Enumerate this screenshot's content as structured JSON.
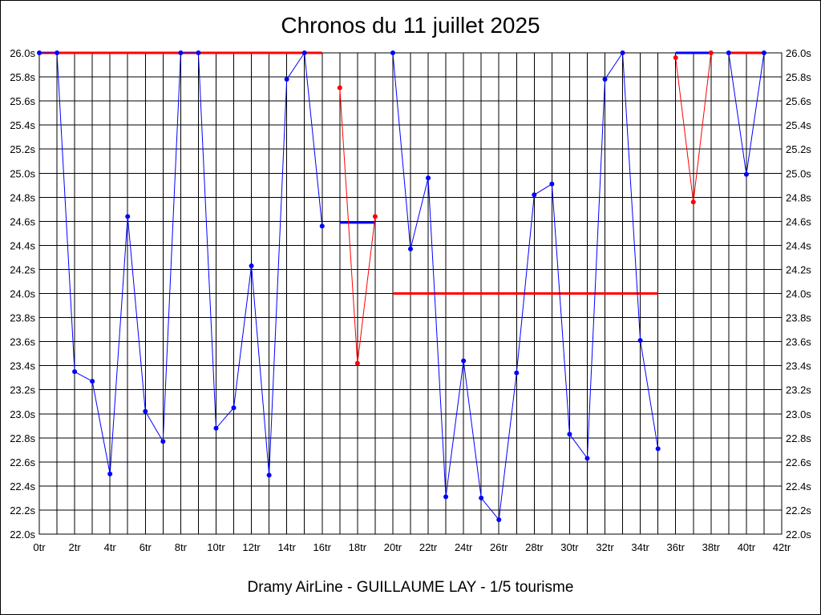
{
  "chart_data": {
    "type": "line",
    "title": "Chronos du 11 juillet 2025",
    "caption": "Dramy AirLine - GUILLAUME LAY - 1/5 tourisme",
    "x_ticks": [
      "0tr",
      "2tr",
      "4tr",
      "6tr",
      "8tr",
      "10tr",
      "12tr",
      "14tr",
      "16tr",
      "18tr",
      "20tr",
      "22tr",
      "24tr",
      "26tr",
      "28tr",
      "30tr",
      "32tr",
      "34tr",
      "36tr",
      "38tr",
      "40tr",
      "42tr"
    ],
    "y_ticks": [
      "22.0s",
      "22.2s",
      "22.4s",
      "22.6s",
      "22.8s",
      "23.0s",
      "23.2s",
      "23.4s",
      "23.6s",
      "23.8s",
      "24.0s",
      "24.2s",
      "24.4s",
      "24.6s",
      "24.8s",
      "25.0s",
      "25.2s",
      "25.4s",
      "25.6s",
      "25.8s",
      "26.0s"
    ],
    "xlim": [
      0,
      42
    ],
    "ylim": [
      22.0,
      26.0
    ],
    "grid": true,
    "colors": {
      "blue": "#0000ff",
      "red": "#ff0000"
    },
    "series": [
      {
        "color": "blue",
        "points": [
          [
            0,
            26.0
          ],
          [
            1,
            26.0
          ],
          [
            2,
            23.35
          ],
          [
            3,
            23.27
          ],
          [
            4,
            22.5
          ],
          [
            5,
            24.64
          ],
          [
            6,
            23.02
          ],
          [
            7,
            22.77
          ],
          [
            8,
            26.0
          ],
          [
            9,
            26.0
          ],
          [
            10,
            22.88
          ],
          [
            11,
            23.05
          ],
          [
            12,
            24.23
          ],
          [
            13,
            22.49
          ],
          [
            14,
            25.78
          ],
          [
            15,
            26.0
          ],
          [
            16,
            24.56
          ]
        ]
      },
      {
        "color": "red",
        "points": [
          [
            17,
            25.71
          ],
          [
            18,
            23.42
          ],
          [
            19,
            24.64
          ]
        ]
      },
      {
        "color": "blue",
        "points": [
          [
            20,
            26.0
          ],
          [
            21,
            24.37
          ],
          [
            22,
            24.96
          ],
          [
            23,
            22.31
          ],
          [
            24,
            23.44
          ],
          [
            25,
            22.3
          ],
          [
            26,
            22.12
          ],
          [
            27,
            23.34
          ],
          [
            28,
            24.82
          ],
          [
            29,
            24.91
          ],
          [
            30,
            22.83
          ],
          [
            31,
            22.63
          ],
          [
            32,
            25.78
          ],
          [
            33,
            26.0
          ],
          [
            34,
            23.61
          ],
          [
            35,
            22.71
          ]
        ]
      },
      {
        "color": "red",
        "points": [
          [
            36,
            25.96
          ],
          [
            37,
            24.76
          ],
          [
            38,
            26.0
          ]
        ]
      },
      {
        "color": "blue",
        "points": [
          [
            39,
            26.0
          ],
          [
            40,
            24.99
          ],
          [
            41,
            26.0
          ]
        ]
      }
    ],
    "reference_lines": [
      {
        "color": "red",
        "x": [
          0,
          16
        ],
        "y": 26.0
      },
      {
        "color": "blue",
        "x": [
          17,
          19
        ],
        "y": 24.59
      },
      {
        "color": "red",
        "x": [
          20,
          35
        ],
        "y": 24.0
      },
      {
        "color": "blue",
        "x": [
          36,
          38
        ],
        "y": 26.0
      },
      {
        "color": "red",
        "x": [
          39,
          41
        ],
        "y": 26.0
      }
    ]
  }
}
